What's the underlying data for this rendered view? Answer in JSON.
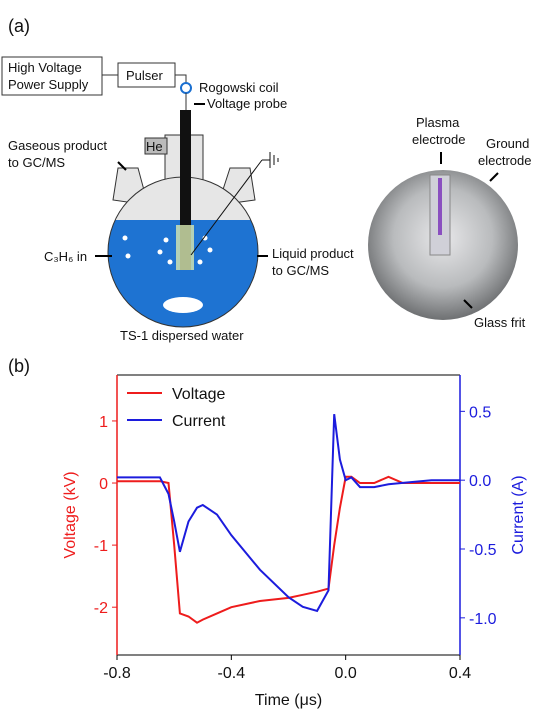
{
  "panel_labels": {
    "a": "(a)",
    "b": "(b)"
  },
  "diagram": {
    "power_supply": [
      "High Voltage",
      "Power Supply"
    ],
    "pulser": "Pulser",
    "rogowski": "Rogowski coil",
    "probe": "Voltage probe",
    "he": "He",
    "gas_out": [
      "Gaseous product",
      "to GC/MS"
    ],
    "c3h6": "C₃H₆ in",
    "liquid_out": [
      "Liquid product",
      "to GC/MS"
    ],
    "water": "TS-1 dispersed water",
    "plasma_electrode": [
      "Plasma",
      "electrode"
    ],
    "ground_electrode": [
      "Ground",
      "electrode"
    ],
    "frit": "Glass frit"
  },
  "chart_data": {
    "type": "line",
    "x_label": "Time (μs)",
    "y_label": "Voltage (kV)",
    "y2_label": "Current (A)",
    "x": [
      -0.8,
      -0.65,
      -0.62,
      -0.6,
      -0.58,
      -0.55,
      -0.52,
      -0.5,
      -0.45,
      -0.4,
      -0.3,
      -0.2,
      -0.15,
      -0.1,
      -0.06,
      -0.04,
      -0.02,
      0,
      0.02,
      0.05,
      0.1,
      0.15,
      0.2,
      0.3,
      0.4
    ],
    "series": [
      {
        "name": "Voltage",
        "color": "#ee1c1c",
        "values": [
          0.03,
          0.03,
          0.0,
          -1.0,
          -2.1,
          -2.15,
          -2.25,
          -2.2,
          -2.1,
          -2.0,
          -1.9,
          -1.85,
          -1.8,
          -1.75,
          -1.7,
          -1.0,
          -0.4,
          0.1,
          0.1,
          0.0,
          0.0,
          0.1,
          0.0,
          0.0,
          0.0
        ]
      },
      {
        "name": "Current",
        "color": "#1c1cdd",
        "axis": "y2",
        "values": [
          0.02,
          0.02,
          -0.1,
          -0.3,
          -0.52,
          -0.3,
          -0.2,
          -0.18,
          -0.25,
          -0.4,
          -0.65,
          -0.85,
          -0.92,
          -0.95,
          -0.8,
          0.48,
          0.15,
          0.0,
          0.02,
          -0.05,
          -0.05,
          -0.03,
          -0.02,
          0.0,
          0.0
        ]
      }
    ],
    "xlim": [
      -0.8,
      0.4
    ],
    "xticks": [
      -0.8,
      -0.4,
      {
        "value": 0,
        "label": "0.0"
      },
      0.4
    ],
    "ylim": [
      -2.77,
      1.74
    ],
    "yticks": [
      -2,
      -1,
      0,
      1
    ],
    "y2lim": [
      -1.27,
      0.764
    ],
    "y2ticks": [
      {
        "value": -1,
        "label": "-1.0"
      },
      -0.5,
      {
        "value": 0,
        "label": "0.0"
      },
      0.5
    ],
    "y_color": "#ee1c1c",
    "y2_color": "#1c1cdd",
    "legend": "upper-left"
  }
}
